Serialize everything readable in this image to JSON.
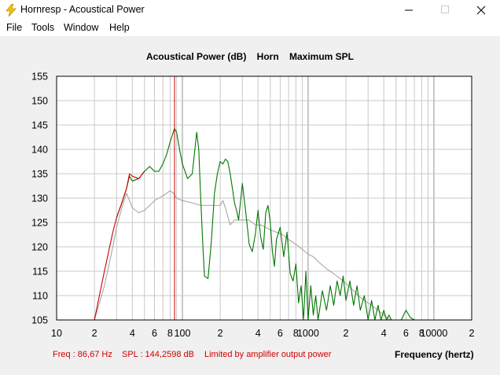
{
  "window": {
    "title": "Hornresp - Acoustical Power",
    "controls": {
      "minimize": "—",
      "maximize": "☐",
      "close": "✕"
    }
  },
  "menu": {
    "items": [
      "File",
      "Tools",
      "Window",
      "Help"
    ]
  },
  "colors": {
    "response": "#007700",
    "low_end": "#cc0000",
    "reference": "#a0a0a0",
    "cursor": "#cc0000",
    "grid": "#c8c8c8"
  },
  "chart_header": "Acoustical Power (dB)    Horn    Maximum SPL",
  "status": {
    "freq": "Freq : 86,67 Hz",
    "spl": "SPL : 144,2598 dB",
    "limit": "Limited by amplifier output power"
  },
  "chart_data": {
    "type": "line",
    "title": "Acoustical Power (dB)    Horn    Maximum SPL",
    "xlabel": "Frequency (hertz)",
    "ylabel": "",
    "x_scale": "log",
    "xlim": [
      10,
      20000
    ],
    "ylim": [
      105,
      155
    ],
    "y_ticks": [
      105,
      110,
      115,
      120,
      125,
      130,
      135,
      140,
      145,
      150,
      155
    ],
    "x_tick_labels": [
      {
        "f": 10,
        "label": "10"
      },
      {
        "f": 20,
        "label": "2"
      },
      {
        "f": 40,
        "label": "4"
      },
      {
        "f": 60,
        "label": "6"
      },
      {
        "f": 80,
        "label": "8"
      },
      {
        "f": 100,
        "label": "100"
      },
      {
        "f": 200,
        "label": "2"
      },
      {
        "f": 400,
        "label": "4"
      },
      {
        "f": 600,
        "label": "6"
      },
      {
        "f": 800,
        "label": "8"
      },
      {
        "f": 1000,
        "label": "1000"
      },
      {
        "f": 2000,
        "label": "2"
      },
      {
        "f": 4000,
        "label": "4"
      },
      {
        "f": 6000,
        "label": "6"
      },
      {
        "f": 8000,
        "label": "8"
      },
      {
        "f": 10000,
        "label": "10000"
      },
      {
        "f": 20000,
        "label": "2"
      }
    ],
    "cursor_freq": 86.67,
    "grid": true,
    "series": [
      {
        "role": "response-low",
        "color": "#cc0000",
        "x": [
          20,
          24,
          28,
          30,
          33,
          36,
          38,
          40,
          45,
          50
        ],
        "y": [
          105,
          115,
          123,
          126,
          129,
          132,
          135,
          134.5,
          134,
          135.5
        ]
      },
      {
        "role": "response",
        "color": "#007700",
        "x": [
          30,
          33,
          36,
          38,
          40,
          45,
          50,
          55,
          60,
          65,
          70,
          75,
          80,
          86.7,
          90,
          95,
          100,
          110,
          120,
          130,
          135,
          140,
          145,
          150,
          160,
          170,
          180,
          190,
          200,
          210,
          220,
          230,
          240,
          250,
          260,
          270,
          280,
          300,
          320,
          340,
          360,
          380,
          400,
          420,
          440,
          460,
          480,
          500,
          520,
          540,
          560,
          600,
          640,
          680,
          720,
          760,
          800,
          840,
          880,
          920,
          960,
          1000,
          1050,
          1100,
          1150,
          1200,
          1300,
          1400,
          1500,
          1600,
          1700,
          1800,
          1900,
          2000,
          2150,
          2300,
          2450,
          2600,
          2800,
          3000,
          3200,
          3400,
          3600,
          3800,
          4000,
          4200,
          4400,
          4600,
          5000,
          5500,
          6000,
          6500,
          7000
        ],
        "y": [
          126,
          129,
          132,
          134.5,
          133.5,
          134,
          135.5,
          136.5,
          135.5,
          135.5,
          137,
          139,
          141.5,
          144.3,
          143.5,
          140,
          137,
          134,
          135,
          143.5,
          140,
          130,
          121,
          114,
          113.5,
          121,
          131,
          135,
          137.5,
          137,
          138,
          137.5,
          135,
          132,
          129,
          127.5,
          125.5,
          133,
          127,
          120.5,
          119,
          122.5,
          127.5,
          122,
          119.5,
          127,
          128.5,
          125,
          119,
          116,
          121.5,
          124,
          118,
          123,
          114.5,
          113,
          116.5,
          108.5,
          112,
          105,
          115,
          105,
          112,
          106,
          110,
          105,
          111,
          107,
          112,
          108,
          113,
          110,
          114,
          109,
          113,
          108,
          112,
          107,
          110,
          105,
          109,
          105,
          108,
          105,
          107,
          105,
          106,
          105,
          105,
          105,
          107,
          105.5,
          105
        ]
      },
      {
        "role": "reference",
        "color": "#a0a0a0",
        "x": [
          20,
          24,
          28,
          30,
          33,
          36,
          40,
          45,
          50,
          55,
          60,
          65,
          70,
          75,
          80,
          85,
          90,
          100,
          120,
          140,
          160,
          180,
          200,
          210,
          220,
          240,
          260,
          280,
          300,
          340,
          380,
          420,
          460,
          500,
          560,
          630,
          700,
          800,
          900,
          1000,
          1100,
          1200,
          1400,
          1600,
          1800,
          2000,
          2200,
          2500,
          2800,
          3200,
          3600,
          4000,
          4500
        ],
        "y": [
          105,
          112,
          120,
          124,
          128,
          131,
          128,
          127,
          127.5,
          128.5,
          129.5,
          130,
          130.5,
          131,
          131.5,
          131,
          130,
          129.5,
          129,
          128.5,
          128.5,
          128.5,
          128.5,
          129.5,
          128,
          124.5,
          125.5,
          125.5,
          125.5,
          125.5,
          124.5,
          124.5,
          124,
          123.5,
          123,
          122.5,
          121.5,
          120.5,
          119.5,
          118.5,
          118,
          117,
          115.5,
          114.5,
          113.5,
          112.5,
          111.5,
          110,
          109,
          108,
          107,
          106,
          105
        ]
      }
    ]
  }
}
